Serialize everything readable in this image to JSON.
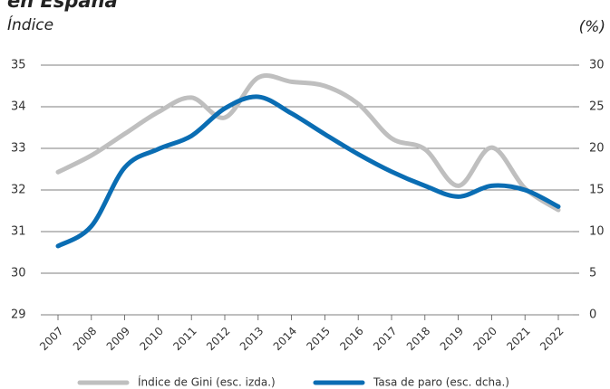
{
  "chart_data": {
    "type": "line",
    "title": "en España",
    "ylabel": "Índice",
    "y2label": "(%)",
    "categories": [
      "2007",
      "2008",
      "2009",
      "2010",
      "2011",
      "2012",
      "2013",
      "2014",
      "2015",
      "2016",
      "2017",
      "2018",
      "2019",
      "2020",
      "2021",
      "2022"
    ],
    "series": [
      {
        "name": "Índice de Gini (esc. izda.)",
        "color": "#bfbfbf",
        "values": [
          32.43,
          32.83,
          33.35,
          33.87,
          34.22,
          33.74,
          34.7,
          34.6,
          34.5,
          34.07,
          33.24,
          32.98,
          32.1,
          33.02,
          32.04,
          31.52
        ]
      },
      {
        "name": "Tasa de paro (esc. dcha.)",
        "color": "#0a6db3",
        "axis": "y2",
        "values": [
          8.26,
          10.65,
          17.7,
          19.9,
          21.5,
          24.8,
          26.2,
          24.2,
          21.7,
          19.3,
          17.2,
          15.5,
          14.2,
          15.5,
          15.0,
          13.0
        ]
      }
    ],
    "ylim": [
      29,
      35
    ],
    "yticks": [
      29,
      30,
      31,
      32,
      33,
      34,
      35
    ],
    "y2lim": [
      0,
      30
    ],
    "y2ticks": [
      0,
      5,
      10,
      15,
      20,
      25,
      30
    ],
    "grid": true,
    "legend": "bottom"
  }
}
